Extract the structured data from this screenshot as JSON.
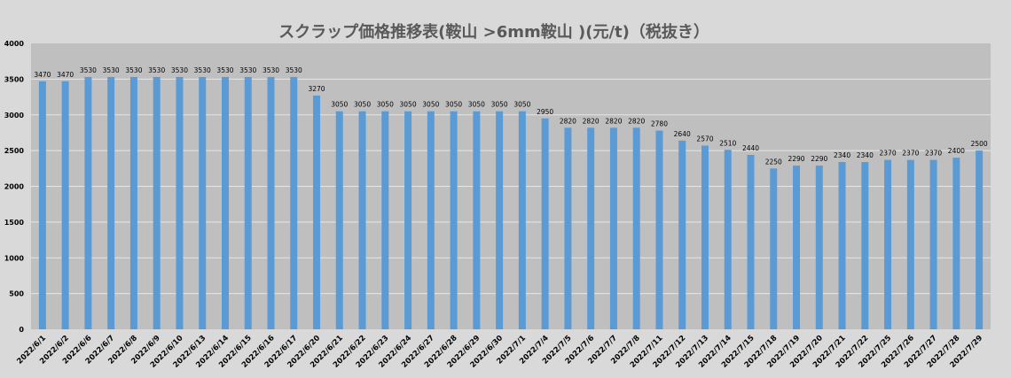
{
  "chart_data": {
    "type": "bar",
    "title": "スクラップ価格推移表(鞍山 >6mm鞍山 )(元/t)（税抜き）",
    "xlabel": "",
    "ylabel": "",
    "ylim": [
      0,
      4000
    ],
    "yticks": [
      0,
      500,
      1000,
      1500,
      2000,
      2500,
      3000,
      3500,
      4000
    ],
    "grid": true,
    "legend": "none",
    "colors": {
      "bar": "#5b9bd5",
      "plot_bg": "#bfbfbf",
      "page_bg": "#d9d9d9",
      "grid": "#e6e6e6"
    },
    "categories": [
      "2022/6/1",
      "2022/6/2",
      "2022/6/6",
      "2022/6/7",
      "2022/6/8",
      "2022/6/9",
      "2022/6/10",
      "2022/6/13",
      "2022/6/14",
      "2022/6/15",
      "2022/6/16",
      "2022/6/17",
      "2022/6/20",
      "2022/6/21",
      "2022/6/22",
      "2022/6/23",
      "2022/6/24",
      "2022/6/27",
      "2022/6/28",
      "2022/6/29",
      "2022/6/30",
      "2022/7/1",
      "2022/7/4",
      "2022/7/5",
      "2022/7/6",
      "2022/7/7",
      "2022/7/8",
      "2022/7/11",
      "2022/7/12",
      "2022/7/13",
      "2022/7/14",
      "2022/7/15",
      "2022/7/18",
      "2022/7/19",
      "2022/7/20",
      "2022/7/21",
      "2022/7/22",
      "2022/7/25",
      "2022/7/26",
      "2022/7/27",
      "2022/7/28",
      "2022/7/29"
    ],
    "values": [
      3470,
      3470,
      3530,
      3530,
      3530,
      3530,
      3530,
      3530,
      3530,
      3530,
      3530,
      3530,
      3270,
      3050,
      3050,
      3050,
      3050,
      3050,
      3050,
      3050,
      3050,
      3050,
      2950,
      2820,
      2820,
      2820,
      2820,
      2780,
      2640,
      2570,
      2510,
      2440,
      2250,
      2290,
      2290,
      2340,
      2340,
      2370,
      2370,
      2370,
      2400,
      2500
    ]
  }
}
